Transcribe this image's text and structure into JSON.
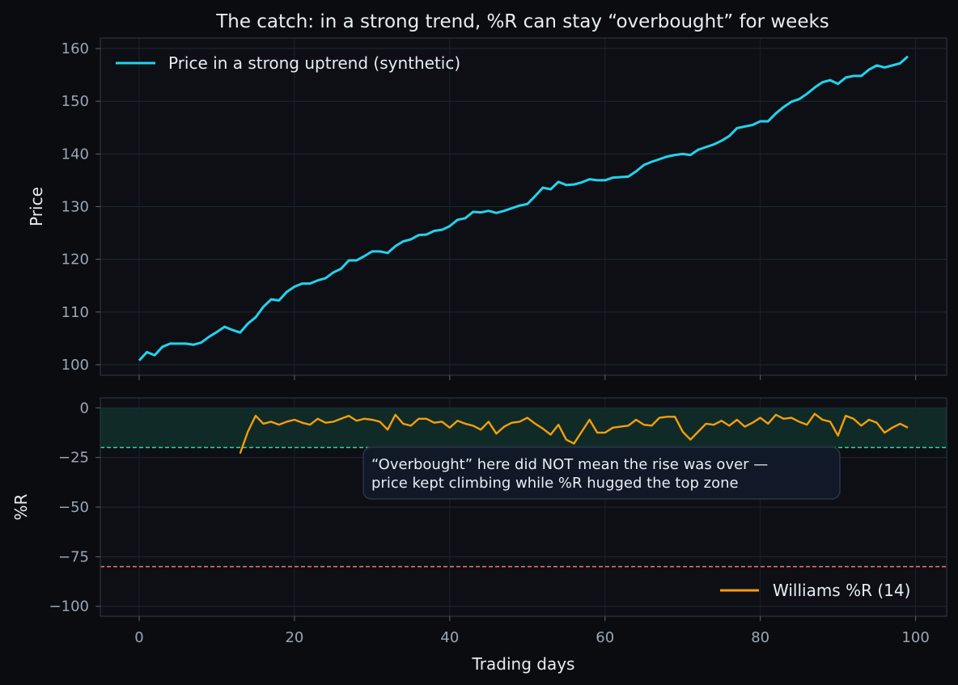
{
  "chart_data": {
    "type": "line",
    "title": "The catch: in a strong trend, %R can stay “overbought” for weeks",
    "xlabel": "Trading days",
    "x_ticks": [
      0,
      20,
      40,
      60,
      80,
      100
    ],
    "xlim": [
      -5,
      104
    ],
    "grid": true,
    "panels": [
      {
        "name": "price",
        "ylabel": "Price",
        "ylim": [
          98,
          162
        ],
        "y_ticks": [
          100,
          110,
          120,
          130,
          140,
          150,
          160
        ],
        "legend_position": "top-left",
        "series": [
          {
            "name": "Price in a strong uptrend (synthetic)",
            "color": "#22d3ee",
            "x_start": 0,
            "values": [
              100.8,
              102.4,
              101.8,
              103.4,
              104.0,
              104.0,
              104.0,
              103.8,
              104.2,
              105.3,
              106.2,
              107.2,
              106.6,
              106.1,
              107.8,
              109.0,
              111.0,
              112.4,
              112.2,
              113.8,
              114.8,
              115.4,
              115.4,
              116.0,
              116.4,
              117.5,
              118.2,
              119.8,
              119.8,
              120.6,
              121.5,
              121.5,
              121.2,
              122.5,
              123.4,
              123.8,
              124.6,
              124.7,
              125.4,
              125.6,
              126.3,
              127.5,
              127.8,
              129.0,
              128.9,
              129.2,
              128.8,
              129.2,
              129.7,
              130.2,
              130.5,
              132.0,
              133.6,
              133.3,
              134.7,
              134.1,
              134.2,
              134.6,
              135.2,
              135.0,
              135.0,
              135.5,
              135.6,
              135.7,
              136.7,
              137.9,
              138.5,
              139.0,
              139.5,
              139.8,
              140.0,
              139.8,
              140.8,
              141.3,
              141.8,
              142.5,
              143.4,
              144.9,
              145.2,
              145.5,
              146.2,
              146.2,
              147.7,
              148.9,
              149.9,
              150.4,
              151.4,
              152.6,
              153.6,
              154.0,
              153.3,
              154.5,
              154.8,
              154.8,
              156.0,
              156.8,
              156.4,
              156.8,
              157.2,
              158.5
            ]
          }
        ]
      },
      {
        "name": "williams",
        "ylabel": "%R",
        "ylim": [
          -105,
          5
        ],
        "y_ticks": [
          0,
          -25,
          -50,
          -75,
          -100
        ],
        "y_tick_labels": [
          "0",
          "−25",
          "−50",
          "−75",
          "−100"
        ],
        "overbought_zone": [
          -20,
          0
        ],
        "overbought_line": -20,
        "oversold_line": -80,
        "overbought_color": "#34d399",
        "oversold_color": "#f87171",
        "legend_position": "bottom-right",
        "series": [
          {
            "name": "Williams %R (14)",
            "color": "#f59e0b",
            "x_start": 13,
            "values": [
              -23,
              -12,
              -4,
              -8,
              -7,
              -8.5,
              -7,
              -6,
              -7.5,
              -8.5,
              -5.5,
              -7.5,
              -7,
              -5.5,
              -4,
              -6.5,
              -5.5,
              -6,
              -7,
              -11,
              -3.5,
              -8,
              -9,
              -5.5,
              -5.5,
              -7.5,
              -7,
              -10,
              -6.5,
              -8,
              -9,
              -11,
              -7,
              -13,
              -9.5,
              -7.5,
              -7,
              -5,
              -8,
              -10.5,
              -13.5,
              -8.5,
              -16,
              -18,
              -12,
              -6,
              -12.5,
              -12.5,
              -10,
              -9.5,
              -9,
              -6,
              -8.5,
              -9,
              -5,
              -4.5,
              -4.5,
              -12,
              -16,
              -12,
              -8,
              -8.5,
              -6.5,
              -9,
              -6,
              -9.5,
              -7.5,
              -5,
              -8,
              -3.5,
              -5.5,
              -5,
              -7,
              -8.5,
              -3,
              -6,
              -7,
              -14,
              -4,
              -5.5,
              -9,
              -6,
              -7.5,
              -12.5,
              -10,
              -8,
              -10
            ]
          }
        ]
      }
    ],
    "annotation": "“Overbought” here did NOT mean the rise was over —\nprice kept climbing while %R hugged the top zone",
    "x_tick_labels": [
      "0",
      "20",
      "40",
      "60",
      "80",
      "100"
    ]
  }
}
